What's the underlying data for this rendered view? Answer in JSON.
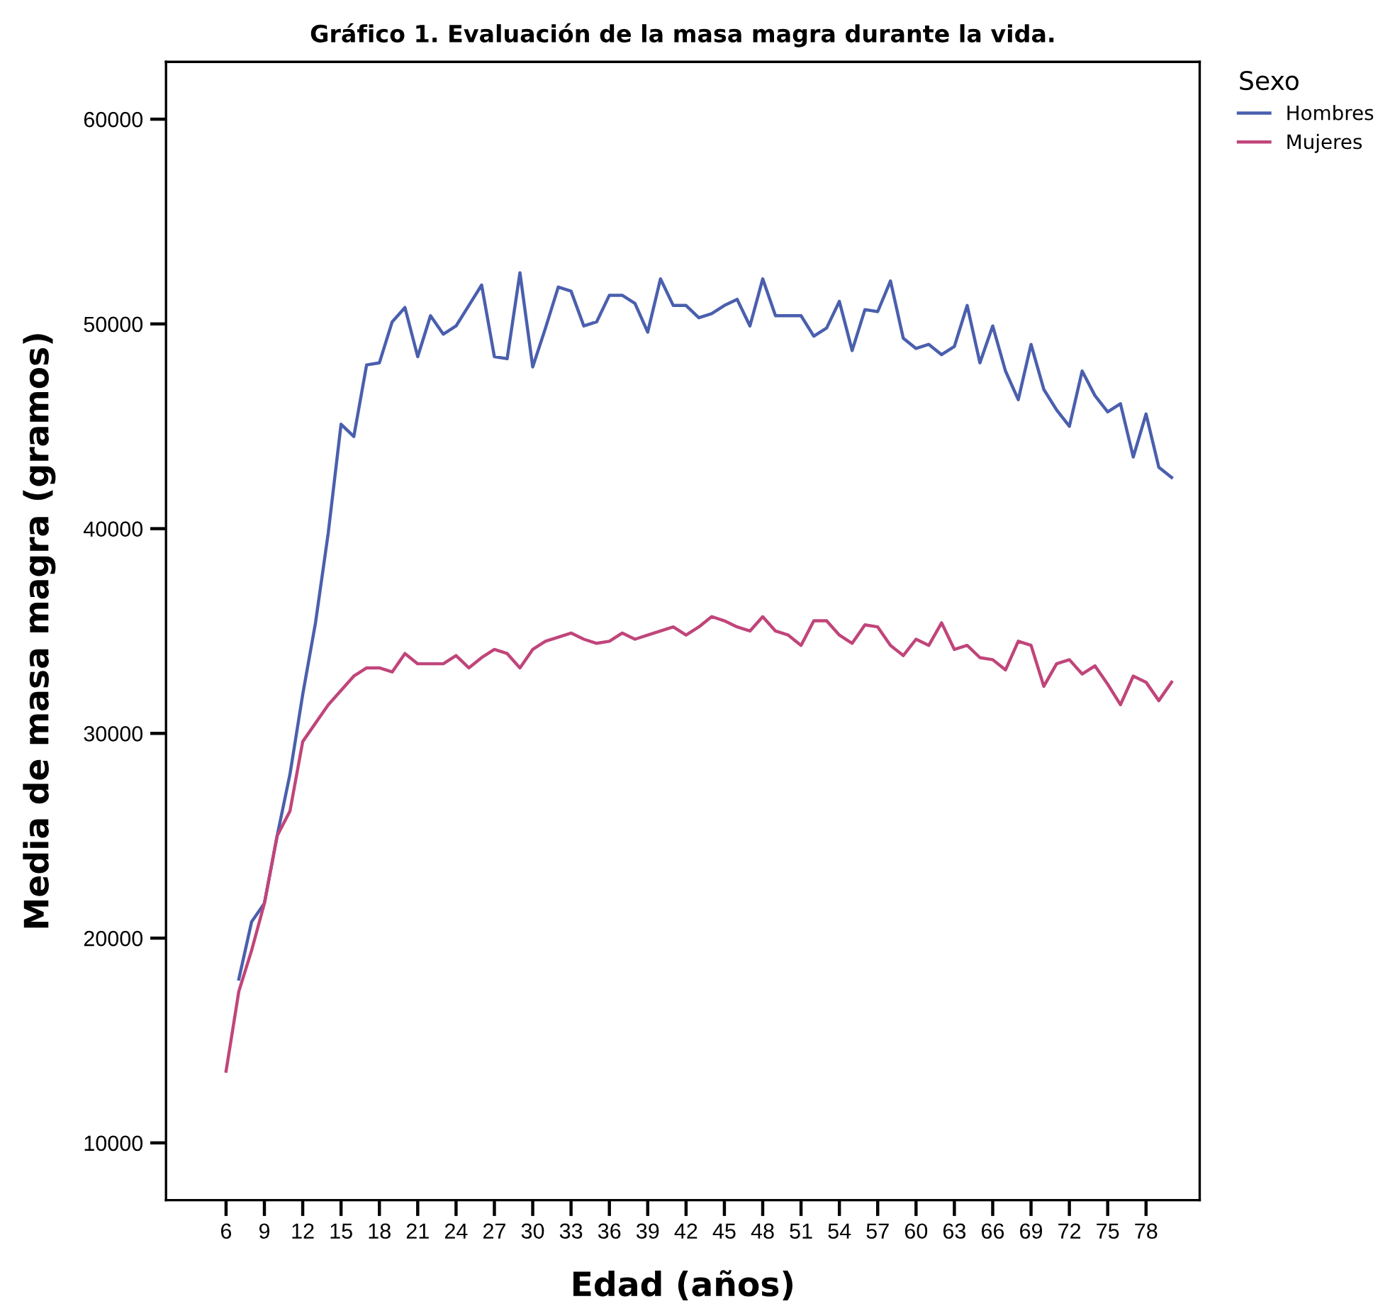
{
  "chart_data": {
    "type": "line",
    "title": "Gráfico 1. Evaluación de la masa magra durante la vida.",
    "xlabel": "Edad (años)",
    "ylabel": "Media de masa magra (gramos)",
    "legend_title": "Sexo",
    "legend": "right",
    "xlim": [
      1.3,
      82.2
    ],
    "xticks": [
      6,
      9,
      12,
      15,
      18,
      21,
      24,
      27,
      30,
      33,
      36,
      39,
      42,
      45,
      48,
      51,
      54,
      57,
      60,
      63,
      66,
      69,
      72,
      75,
      78
    ],
    "ylim": [
      7200,
      62800
    ],
    "yticks": [
      10000,
      20000,
      30000,
      40000,
      50000,
      60000
    ],
    "grid": false,
    "marker": "none",
    "line_style": "solid",
    "series": [
      {
        "name": "Hombres",
        "color": "#4a5fad",
        "x": [
          7,
          8,
          9,
          10,
          11,
          12,
          13,
          14,
          15,
          16,
          17,
          18,
          19,
          20,
          21,
          22,
          23,
          24,
          25,
          26,
          27,
          28,
          29,
          30,
          31,
          32,
          33,
          34,
          35,
          36,
          37,
          38,
          39,
          40,
          41,
          42,
          43,
          44,
          45,
          46,
          47,
          48,
          49,
          50,
          51,
          52,
          53,
          54,
          55,
          56,
          57,
          58,
          59,
          60,
          61,
          62,
          63,
          64,
          65,
          66,
          67,
          68,
          69,
          70,
          71,
          72,
          73,
          74,
          75,
          76,
          77,
          78,
          79,
          80
        ],
        "values": [
          18000,
          20800,
          21700,
          25000,
          28000,
          31900,
          35400,
          39800,
          45100,
          44500,
          48000,
          48100,
          50100,
          50800,
          48400,
          50400,
          49500,
          49900,
          50900,
          51900,
          48400,
          48300,
          52500,
          47900,
          49800,
          51800,
          51600,
          49900,
          50100,
          51400,
          51400,
          51000,
          49600,
          52200,
          50900,
          50900,
          50300,
          50500,
          50900,
          51200,
          49900,
          52200,
          50400,
          50400,
          50400,
          49400,
          49800,
          51100,
          48700,
          50700,
          50600,
          52100,
          49300,
          48800,
          49000,
          48500,
          48900,
          50900,
          48100,
          49900,
          47700,
          46300,
          49000,
          46800,
          45800,
          45000,
          47700,
          46500,
          45700,
          46100,
          43500,
          45600,
          43000,
          42500
        ]
      },
      {
        "name": "Mujeres",
        "color": "#c0457a",
        "x": [
          6,
          7,
          8,
          9,
          10,
          11,
          12,
          13,
          14,
          15,
          16,
          17,
          18,
          19,
          20,
          21,
          22,
          23,
          24,
          25,
          26,
          27,
          28,
          29,
          30,
          31,
          32,
          33,
          34,
          35,
          36,
          37,
          38,
          39,
          40,
          41,
          42,
          43,
          44,
          45,
          46,
          47,
          48,
          49,
          50,
          51,
          52,
          53,
          54,
          55,
          56,
          57,
          58,
          59,
          60,
          61,
          62,
          63,
          64,
          65,
          66,
          67,
          68,
          69,
          70,
          71,
          72,
          73,
          74,
          75,
          76,
          77,
          78,
          79,
          80
        ],
        "values": [
          13500,
          17400,
          19400,
          21700,
          25000,
          26200,
          29600,
          30500,
          31400,
          32100,
          32800,
          33200,
          33200,
          33000,
          33900,
          33400,
          33400,
          33400,
          33800,
          33200,
          33700,
          34100,
          33900,
          33200,
          34100,
          34500,
          34700,
          34900,
          34600,
          34400,
          34500,
          34900,
          34600,
          34800,
          35000,
          35200,
          34800,
          35200,
          35700,
          35500,
          35200,
          35000,
          35700,
          35000,
          34800,
          34300,
          35500,
          35500,
          34800,
          34400,
          35300,
          35200,
          34300,
          33800,
          34600,
          34300,
          35400,
          34100,
          34300,
          33700,
          33600,
          33100,
          34500,
          34300,
          32300,
          33400,
          33600,
          32900,
          33300,
          32400,
          31400,
          32800,
          32500,
          31600,
          32500
        ]
      }
    ]
  }
}
